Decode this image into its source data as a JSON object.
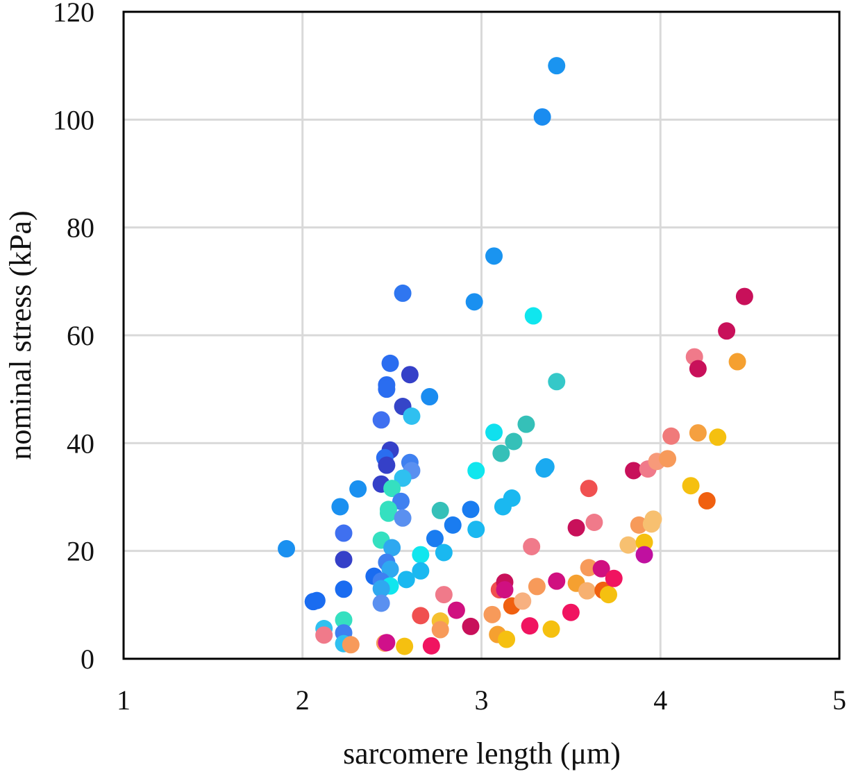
{
  "chart_data": {
    "type": "scatter",
    "title": "",
    "xlabel": "sarcomere length (μm)",
    "ylabel": "nominal stress (kPa)",
    "xlim": [
      1,
      5
    ],
    "ylim": [
      0,
      120
    ],
    "xticks": [
      "1",
      "2",
      "3",
      "4",
      "5"
    ],
    "yticks": [
      "0",
      "20",
      "40",
      "60",
      "80",
      "100",
      "120"
    ],
    "grid": true,
    "legend": "none",
    "points": [
      {
        "x": 3.42,
        "y": 110.0,
        "color": "#1a94f0"
      },
      {
        "x": 3.34,
        "y": 100.5,
        "color": "#1a8cf0"
      },
      {
        "x": 3.07,
        "y": 74.7,
        "color": "#1a94f0"
      },
      {
        "x": 2.56,
        "y": 67.8,
        "color": "#2f76f0"
      },
      {
        "x": 2.96,
        "y": 66.2,
        "color": "#1a90f0"
      },
      {
        "x": 3.29,
        "y": 63.6,
        "color": "#10e6ee"
      },
      {
        "x": 2.49,
        "y": 54.8,
        "color": "#2a6df0"
      },
      {
        "x": 2.6,
        "y": 52.7,
        "color": "#3540c8"
      },
      {
        "x": 2.47,
        "y": 50.8,
        "color": "#2a6df0"
      },
      {
        "x": 2.47,
        "y": 50.0,
        "color": "#2a6df0"
      },
      {
        "x": 2.56,
        "y": 46.8,
        "color": "#3545c8"
      },
      {
        "x": 2.71,
        "y": 48.6,
        "color": "#1a8cf0"
      },
      {
        "x": 2.61,
        "y": 45.0,
        "color": "#2fc0f0"
      },
      {
        "x": 2.44,
        "y": 44.3,
        "color": "#3f70f0"
      },
      {
        "x": 3.42,
        "y": 51.4,
        "color": "#35c8c8"
      },
      {
        "x": 3.25,
        "y": 43.5,
        "color": "#35c0b8"
      },
      {
        "x": 3.07,
        "y": 42.0,
        "color": "#10e0ee"
      },
      {
        "x": 3.18,
        "y": 40.3,
        "color": "#35c0b8"
      },
      {
        "x": 3.11,
        "y": 38.1,
        "color": "#35c0b8"
      },
      {
        "x": 2.49,
        "y": 38.7,
        "color": "#3540c8"
      },
      {
        "x": 2.46,
        "y": 37.3,
        "color": "#2a6df0"
      },
      {
        "x": 2.47,
        "y": 35.9,
        "color": "#3540c8"
      },
      {
        "x": 2.6,
        "y": 36.4,
        "color": "#3f80f0"
      },
      {
        "x": 2.61,
        "y": 34.9,
        "color": "#5a90f0"
      },
      {
        "x": 2.56,
        "y": 33.5,
        "color": "#2fc0f0"
      },
      {
        "x": 2.97,
        "y": 34.9,
        "color": "#10e6ee"
      },
      {
        "x": 3.35,
        "y": 35.2,
        "color": "#1aaaf0"
      },
      {
        "x": 3.36,
        "y": 35.6,
        "color": "#1aaaf0"
      },
      {
        "x": 2.44,
        "y": 32.4,
        "color": "#3540c8"
      },
      {
        "x": 2.31,
        "y": 31.5,
        "color": "#1a90f0"
      },
      {
        "x": 2.5,
        "y": 31.6,
        "color": "#35e0c0"
      },
      {
        "x": 2.55,
        "y": 29.2,
        "color": "#3f80f0"
      },
      {
        "x": 3.17,
        "y": 29.8,
        "color": "#1ab8f0"
      },
      {
        "x": 3.12,
        "y": 28.2,
        "color": "#1ab8f0"
      },
      {
        "x": 2.21,
        "y": 28.2,
        "color": "#1a90f0"
      },
      {
        "x": 2.48,
        "y": 27.7,
        "color": "#35e0c0"
      },
      {
        "x": 2.48,
        "y": 27.0,
        "color": "#35e0c0"
      },
      {
        "x": 2.77,
        "y": 27.5,
        "color": "#35c0b8"
      },
      {
        "x": 2.94,
        "y": 27.7,
        "color": "#1a7cf0"
      },
      {
        "x": 2.56,
        "y": 26.1,
        "color": "#5a90f0"
      },
      {
        "x": 2.84,
        "y": 24.8,
        "color": "#1a7cf0"
      },
      {
        "x": 2.97,
        "y": 24.0,
        "color": "#1ab8f0"
      },
      {
        "x": 2.23,
        "y": 23.3,
        "color": "#3f70f0"
      },
      {
        "x": 2.74,
        "y": 22.3,
        "color": "#1a7cf0"
      },
      {
        "x": 2.44,
        "y": 22.0,
        "color": "#35e0c0"
      },
      {
        "x": 1.91,
        "y": 20.4,
        "color": "#1a90f0"
      },
      {
        "x": 2.5,
        "y": 20.6,
        "color": "#2fa8f0"
      },
      {
        "x": 2.79,
        "y": 19.7,
        "color": "#1ab8f0"
      },
      {
        "x": 2.66,
        "y": 19.3,
        "color": "#10e6ee"
      },
      {
        "x": 2.23,
        "y": 18.4,
        "color": "#3540c8"
      },
      {
        "x": 2.47,
        "y": 17.9,
        "color": "#3f80f0"
      },
      {
        "x": 2.49,
        "y": 16.6,
        "color": "#2fa8f0"
      },
      {
        "x": 2.66,
        "y": 16.3,
        "color": "#1ab8f0"
      },
      {
        "x": 2.4,
        "y": 15.3,
        "color": "#1a6cf0"
      },
      {
        "x": 2.58,
        "y": 14.7,
        "color": "#1ab8f0"
      },
      {
        "x": 2.44,
        "y": 14.4,
        "color": "#3f80f0"
      },
      {
        "x": 2.49,
        "y": 13.5,
        "color": "#10e6ee"
      },
      {
        "x": 2.44,
        "y": 13.0,
        "color": "#2fa8f0"
      },
      {
        "x": 2.23,
        "y": 12.9,
        "color": "#1a6cf0"
      },
      {
        "x": 2.44,
        "y": 10.3,
        "color": "#5a90f0"
      },
      {
        "x": 2.06,
        "y": 10.6,
        "color": "#1a6cf0"
      },
      {
        "x": 2.08,
        "y": 10.8,
        "color": "#1a6cf0"
      },
      {
        "x": 2.23,
        "y": 7.2,
        "color": "#35e0c0"
      },
      {
        "x": 2.12,
        "y": 5.6,
        "color": "#2fc0f0"
      },
      {
        "x": 2.23,
        "y": 4.8,
        "color": "#3f80f0"
      },
      {
        "x": 2.12,
        "y": 4.4,
        "color": "#f07a8a"
      },
      {
        "x": 2.23,
        "y": 2.8,
        "color": "#2fc0f0"
      },
      {
        "x": 2.27,
        "y": 2.6,
        "color": "#f79a5a"
      },
      {
        "x": 2.46,
        "y": 2.9,
        "color": "#f79a5a"
      },
      {
        "x": 2.47,
        "y": 3.0,
        "color": "#d0108a"
      },
      {
        "x": 2.57,
        "y": 2.3,
        "color": "#f5c010"
      },
      {
        "x": 2.66,
        "y": 8.0,
        "color": "#f05050"
      },
      {
        "x": 2.72,
        "y": 2.4,
        "color": "#f01460"
      },
      {
        "x": 2.77,
        "y": 7.0,
        "color": "#f5c030"
      },
      {
        "x": 2.79,
        "y": 11.9,
        "color": "#f07a8a"
      },
      {
        "x": 2.77,
        "y": 5.4,
        "color": "#f79a5a"
      },
      {
        "x": 2.86,
        "y": 9.0,
        "color": "#d01080"
      },
      {
        "x": 2.94,
        "y": 6.0,
        "color": "#c8105a"
      },
      {
        "x": 3.06,
        "y": 8.2,
        "color": "#f79a5a"
      },
      {
        "x": 3.09,
        "y": 4.5,
        "color": "#f5a030"
      },
      {
        "x": 3.14,
        "y": 3.6,
        "color": "#f5c010"
      },
      {
        "x": 3.1,
        "y": 12.8,
        "color": "#f05050"
      },
      {
        "x": 3.13,
        "y": 14.2,
        "color": "#c8105a"
      },
      {
        "x": 3.13,
        "y": 12.8,
        "color": "#d01080"
      },
      {
        "x": 3.17,
        "y": 9.8,
        "color": "#f06010"
      },
      {
        "x": 3.23,
        "y": 10.7,
        "color": "#f7b080"
      },
      {
        "x": 3.27,
        "y": 6.1,
        "color": "#f01460"
      },
      {
        "x": 3.28,
        "y": 20.8,
        "color": "#f07a8a"
      },
      {
        "x": 3.31,
        "y": 13.4,
        "color": "#f79a5a"
      },
      {
        "x": 3.39,
        "y": 5.5,
        "color": "#f5c010"
      },
      {
        "x": 3.42,
        "y": 14.4,
        "color": "#d01080"
      },
      {
        "x": 3.5,
        "y": 8.6,
        "color": "#f01460"
      },
      {
        "x": 3.53,
        "y": 14.0,
        "color": "#f5a030"
      },
      {
        "x": 3.53,
        "y": 24.3,
        "color": "#c8105a"
      },
      {
        "x": 3.59,
        "y": 12.6,
        "color": "#f7b070"
      },
      {
        "x": 3.6,
        "y": 16.9,
        "color": "#f79a5a"
      },
      {
        "x": 3.6,
        "y": 31.6,
        "color": "#f05050"
      },
      {
        "x": 3.63,
        "y": 25.3,
        "color": "#f07a8a"
      },
      {
        "x": 3.67,
        "y": 16.7,
        "color": "#d01080"
      },
      {
        "x": 3.68,
        "y": 12.7,
        "color": "#f06010"
      },
      {
        "x": 3.71,
        "y": 11.9,
        "color": "#f5c010"
      },
      {
        "x": 3.74,
        "y": 14.9,
        "color": "#f01460"
      },
      {
        "x": 3.82,
        "y": 21.1,
        "color": "#f7c070"
      },
      {
        "x": 3.85,
        "y": 34.9,
        "color": "#c8105a"
      },
      {
        "x": 3.88,
        "y": 24.8,
        "color": "#f79a5a"
      },
      {
        "x": 3.91,
        "y": 21.6,
        "color": "#f5c010"
      },
      {
        "x": 3.91,
        "y": 19.3,
        "color": "#c010a0"
      },
      {
        "x": 3.93,
        "y": 35.2,
        "color": "#f07a8a"
      },
      {
        "x": 3.95,
        "y": 25.0,
        "color": "#f7c070"
      },
      {
        "x": 3.96,
        "y": 25.9,
        "color": "#f7c070"
      },
      {
        "x": 3.98,
        "y": 36.6,
        "color": "#f79a7a"
      },
      {
        "x": 4.04,
        "y": 37.1,
        "color": "#f79a5a"
      },
      {
        "x": 4.06,
        "y": 41.3,
        "color": "#f07a7a"
      },
      {
        "x": 4.17,
        "y": 32.1,
        "color": "#f5c010"
      },
      {
        "x": 4.19,
        "y": 56.0,
        "color": "#f07a8a"
      },
      {
        "x": 4.21,
        "y": 41.9,
        "color": "#f5a040"
      },
      {
        "x": 4.21,
        "y": 53.8,
        "color": "#c8105a"
      },
      {
        "x": 4.26,
        "y": 29.3,
        "color": "#f06010"
      },
      {
        "x": 4.32,
        "y": 41.1,
        "color": "#f5c010"
      },
      {
        "x": 4.37,
        "y": 60.8,
        "color": "#c8105a"
      },
      {
        "x": 4.43,
        "y": 55.1,
        "color": "#f5a030"
      },
      {
        "x": 4.47,
        "y": 67.2,
        "color": "#c8105a"
      }
    ]
  }
}
